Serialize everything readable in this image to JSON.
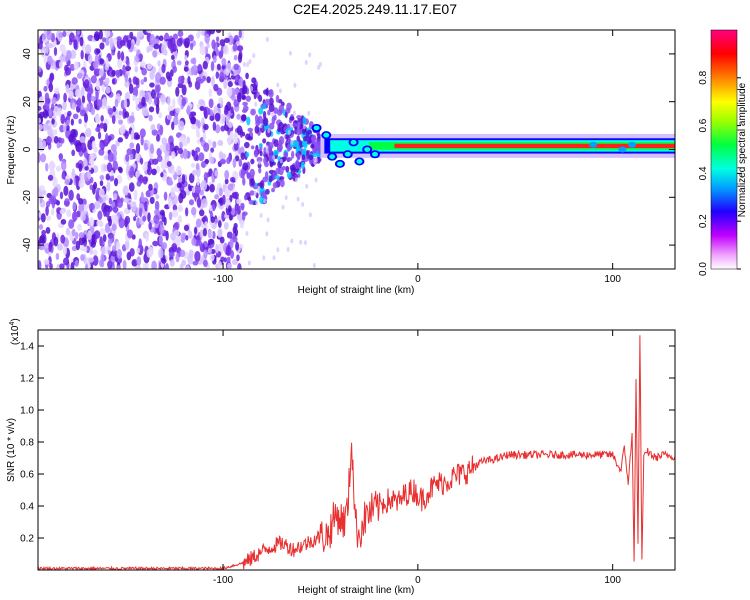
{
  "title": "C2E4.2025.249.11.17.E07",
  "colors": {
    "signal": "#e83030",
    "purple": "#6a22e0",
    "axis": "#000000"
  },
  "chart_data": [
    {
      "type": "heatmap",
      "title": "C2E4.2025.249.11.17.E07",
      "xlabel": "Height of straight line (km)",
      "ylabel": "Frequency (Hz)",
      "xlim": [
        -195,
        132
      ],
      "ylim": [
        -50,
        50
      ],
      "xticks": [
        -100,
        0,
        100
      ],
      "yticks": [
        -40,
        -20,
        0,
        20,
        40
      ],
      "colorbar": {
        "label": "Normalized spectral amplitude",
        "range": [
          0,
          1
        ],
        "ticks": [
          "0.0",
          "0.2",
          "0.4",
          "0.6",
          "0.8"
        ],
        "colormap": [
          "#ffffff",
          "#ff00ff",
          "#0000ff",
          "#00ffff",
          "#00ff00",
          "#ffff00",
          "#ff8000",
          "#ff0000",
          "#ff0080"
        ]
      },
      "features": {
        "noise_region_x": [
          -195,
          -90
        ],
        "scatter_region_x": [
          -90,
          -50
        ],
        "signal_line_freq_hz": 1.5,
        "signal_line_start_x": -50
      }
    },
    {
      "type": "line",
      "xlabel": "Height of straight line (km)",
      "ylabel": "SNR (10 * v/v)",
      "multiplier": "(x10",
      "multiplier_exp": "4",
      "xlim": [
        -195,
        132
      ],
      "ylim": [
        0,
        1.5
      ],
      "xticks": [
        -100,
        0,
        100
      ],
      "yticks": [
        "0.2",
        "0.4",
        "0.6",
        "0.8",
        "1.0",
        "1.2",
        "1.4"
      ],
      "series": [
        {
          "name": "SNR",
          "x": [
            -195,
            -150,
            -100,
            -88,
            -82,
            -76,
            -70,
            -64,
            -58,
            -52,
            -46,
            -42,
            -38,
            -36,
            -34,
            -32,
            -30,
            -28,
            -26,
            -22,
            -18,
            -14,
            -10,
            -6,
            -2,
            2,
            6,
            10,
            14,
            18,
            22,
            26,
            30,
            34,
            38,
            42,
            46,
            50,
            60,
            70,
            80,
            90,
            100,
            104,
            106,
            108,
            110,
            111,
            112,
            113,
            114,
            115,
            116,
            118,
            122,
            126,
            132
          ],
          "values": [
            0.01,
            0.01,
            0.01,
            0.05,
            0.1,
            0.14,
            0.17,
            0.13,
            0.16,
            0.2,
            0.22,
            0.35,
            0.3,
            0.38,
            0.82,
            0.28,
            0.22,
            0.3,
            0.35,
            0.38,
            0.42,
            0.44,
            0.42,
            0.48,
            0.5,
            0.44,
            0.5,
            0.54,
            0.55,
            0.58,
            0.6,
            0.62,
            0.66,
            0.68,
            0.69,
            0.7,
            0.72,
            0.72,
            0.72,
            0.72,
            0.72,
            0.72,
            0.72,
            0.62,
            0.76,
            0.55,
            0.84,
            0.05,
            1.2,
            0.15,
            1.49,
            0.05,
            0.7,
            0.74,
            0.7,
            0.72,
            0.71
          ]
        }
      ]
    }
  ]
}
